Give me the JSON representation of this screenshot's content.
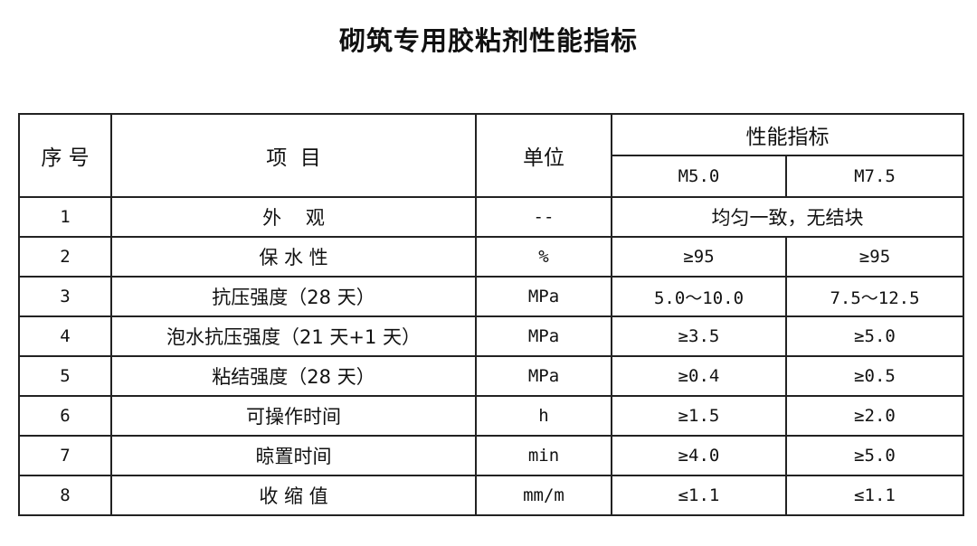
{
  "title": "砌筑专用胶粘剂性能指标",
  "header": {
    "no": "序 号",
    "item": "项  目",
    "unit": "单位",
    "performance": "性能指标",
    "grades": [
      "M5.0",
      "M7.5"
    ]
  },
  "rows": [
    {
      "no": "1",
      "item": "外    观",
      "unit": "--",
      "merged": "均匀一致，无结块"
    },
    {
      "no": "2",
      "item": "保 水 性",
      "unit": "%",
      "m50": "≥95",
      "m75": "≥95"
    },
    {
      "no": "3",
      "item": "抗压强度（28 天）",
      "unit": "MPa",
      "m50": "5.0～10.0",
      "m75": "7.5～12.5"
    },
    {
      "no": "4",
      "item": "泡水抗压强度（21 天+1 天）",
      "unit": "MPa",
      "m50": "≥3.5",
      "m75": "≥5.0"
    },
    {
      "no": "5",
      "item": "粘结强度（28 天）",
      "unit": "MPa",
      "m50": "≥0.4",
      "m75": "≥0.5"
    },
    {
      "no": "6",
      "item": "可操作时间",
      "unit": "h",
      "m50": "≥1.5",
      "m75": "≥2.0"
    },
    {
      "no": "7",
      "item": "晾置时间",
      "unit": "min",
      "m50": "≥4.0",
      "m75": "≥5.0"
    },
    {
      "no": "8",
      "item": "收 缩 值",
      "unit": "mm/m",
      "m50": "≤1.1",
      "m75": "≤1.1"
    }
  ]
}
